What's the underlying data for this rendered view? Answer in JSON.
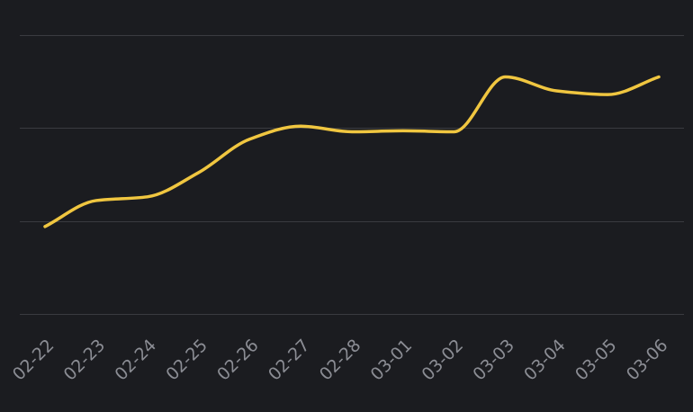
{
  "colors": {
    "background": "#1b1c20",
    "grid": "#3a3b40",
    "line": "#f0c640",
    "tick_text": "#8b8d94"
  },
  "chart_data": {
    "type": "line",
    "title": "",
    "xlabel": "",
    "ylabel": "",
    "x": [
      "02-22",
      "02-23",
      "02-24",
      "02-25",
      "02-26",
      "02-27",
      "02-28",
      "03-01",
      "03-02",
      "03-03",
      "03-04",
      "03-05",
      "03-06"
    ],
    "series": [
      {
        "name": "",
        "values": [
          0.94,
          1.22,
          1.26,
          1.52,
          1.88,
          2.02,
          1.96,
          1.97,
          1.96,
          2.55,
          2.4,
          2.36,
          2.55
        ]
      }
    ],
    "ylim": [
      0,
      3
    ],
    "gridlines_y": [
      0,
      1,
      2,
      3
    ],
    "y_tick_labels_visible": false,
    "grid": true,
    "smooth": true,
    "legend": "none"
  }
}
